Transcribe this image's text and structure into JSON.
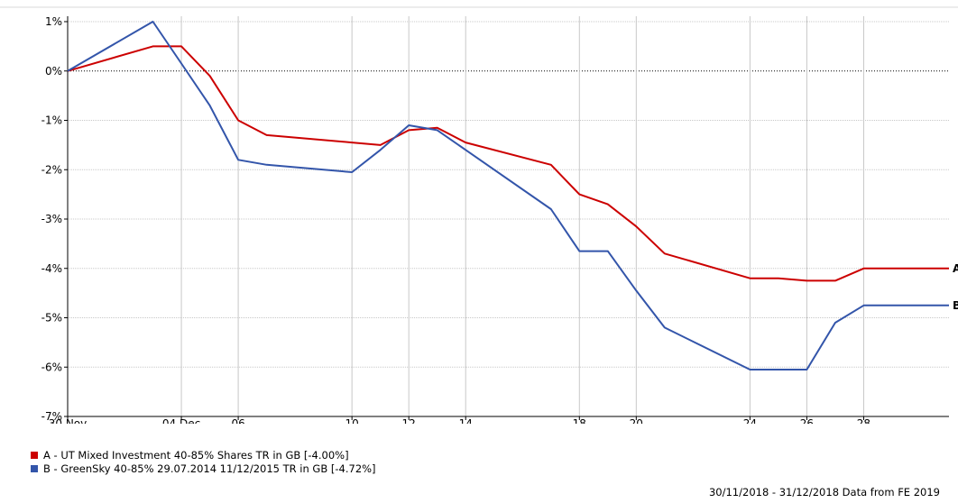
{
  "chart_data": {
    "type": "line",
    "title": "",
    "xlabel": "",
    "ylabel": "",
    "ylim": [
      -7,
      1
    ],
    "y_ticks": [
      "1%",
      "0%",
      "-1%",
      "-2%",
      "-3%",
      "-4%",
      "-5%",
      "-6%",
      "-7%"
    ],
    "y_tick_values": [
      1,
      0,
      -1,
      -2,
      -3,
      -4,
      -5,
      -6,
      -7
    ],
    "x_ticks": [
      "30 Nov",
      "04 Dec",
      "06",
      "10",
      "12",
      "14",
      "18",
      "20",
      "24",
      "26",
      "28"
    ],
    "x_tick_dates": [
      "2018-11-30",
      "2018-12-04",
      "2018-12-06",
      "2018-12-10",
      "2018-12-12",
      "2018-12-14",
      "2018-12-18",
      "2018-12-20",
      "2018-12-24",
      "2018-12-26",
      "2018-12-28"
    ],
    "grid": true,
    "zero_line": "dotted",
    "series": [
      {
        "name": "A - UT Mixed Investment 40-85% Shares TR in GB [-4.00%]",
        "end_label": "A",
        "color": "#cc0000",
        "points": [
          [
            "2018-11-30",
            0.0
          ],
          [
            "2018-12-03",
            0.5
          ],
          [
            "2018-12-04",
            0.5
          ],
          [
            "2018-12-05",
            -0.1
          ],
          [
            "2018-12-06",
            -1.0
          ],
          [
            "2018-12-07",
            -1.3
          ],
          [
            "2018-12-10",
            -1.45
          ],
          [
            "2018-12-11",
            -1.5
          ],
          [
            "2018-12-12",
            -1.2
          ],
          [
            "2018-12-13",
            -1.15
          ],
          [
            "2018-12-14",
            -1.45
          ],
          [
            "2018-12-17",
            -1.9
          ],
          [
            "2018-12-18",
            -2.5
          ],
          [
            "2018-12-19",
            -2.7
          ],
          [
            "2018-12-20",
            -3.15
          ],
          [
            "2018-12-21",
            -3.7
          ],
          [
            "2018-12-24",
            -4.2
          ],
          [
            "2018-12-25",
            -4.2
          ],
          [
            "2018-12-26",
            -4.25
          ],
          [
            "2018-12-27",
            -4.25
          ],
          [
            "2018-12-28",
            -4.0
          ],
          [
            "2018-12-31",
            -4.0
          ]
        ]
      },
      {
        "name": "B - GreenSky 40-85% 29.07.2014 11/12/2015 TR in GB [-4.72%]",
        "end_label": "B",
        "color": "#3355aa",
        "points": [
          [
            "2018-11-30",
            0.0
          ],
          [
            "2018-12-03",
            1.0
          ],
          [
            "2018-12-04",
            0.15
          ],
          [
            "2018-12-05",
            -0.7
          ],
          [
            "2018-12-06",
            -1.8
          ],
          [
            "2018-12-07",
            -1.9
          ],
          [
            "2018-12-10",
            -2.05
          ],
          [
            "2018-12-11",
            -1.6
          ],
          [
            "2018-12-12",
            -1.1
          ],
          [
            "2018-12-13",
            -1.2
          ],
          [
            "2018-12-14",
            -1.6
          ],
          [
            "2018-12-17",
            -2.8
          ],
          [
            "2018-12-18",
            -3.65
          ],
          [
            "2018-12-19",
            -3.65
          ],
          [
            "2018-12-20",
            -4.45
          ],
          [
            "2018-12-21",
            -5.2
          ],
          [
            "2018-12-24",
            -6.05
          ],
          [
            "2018-12-25",
            -6.05
          ],
          [
            "2018-12-26",
            -6.05
          ],
          [
            "2018-12-27",
            -5.1
          ],
          [
            "2018-12-28",
            -4.75
          ],
          [
            "2018-12-31",
            -4.75
          ]
        ]
      }
    ]
  },
  "legend": [
    {
      "label": "A - UT Mixed Investment 40-85% Shares TR in GB [-4.00%]",
      "color": "#cc0000"
    },
    {
      "label": "B - GreenSky 40-85% 29.07.2014 11/12/2015 TR in GB [-4.72%]",
      "color": "#3355aa"
    }
  ],
  "footer": "30/11/2018 - 31/12/2018 Data from FE 2019"
}
